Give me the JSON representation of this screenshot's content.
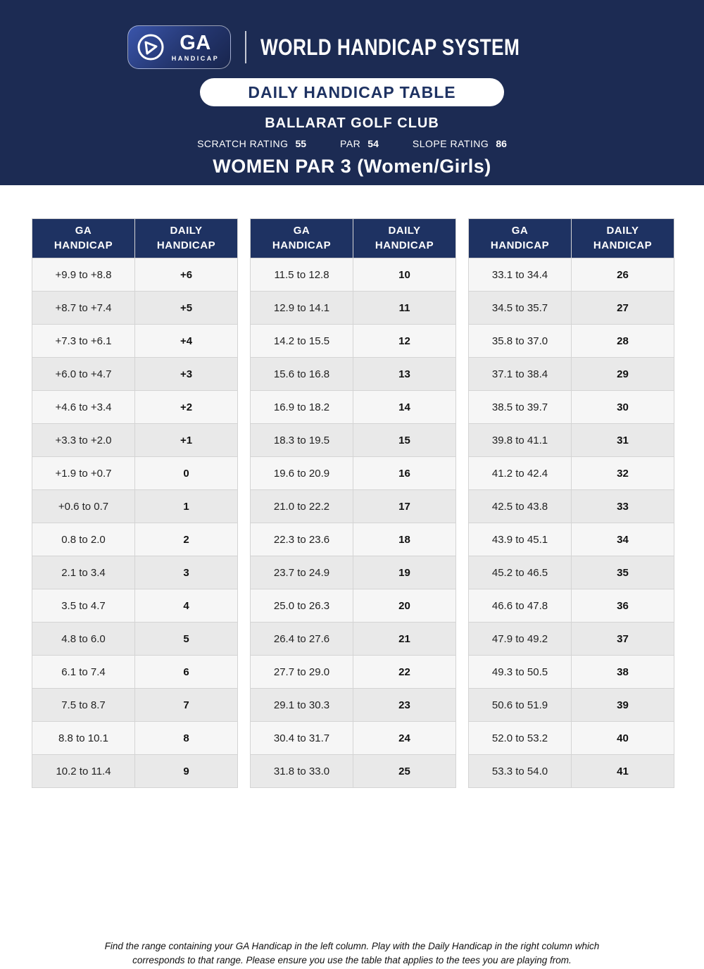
{
  "header": {
    "logo": {
      "ga": "GA",
      "handicap": "HANDICAP"
    },
    "brand": "WORLD HANDICAP SYSTEM",
    "banner_title": "DAILY HANDICAP TABLE",
    "club_name": "BALLARAT GOLF CLUB",
    "ratings": [
      {
        "label": "SCRATCH RATING",
        "value": "55"
      },
      {
        "label": "PAR",
        "value": "54"
      },
      {
        "label": "SLOPE RATING",
        "value": "86"
      }
    ],
    "subtitle": "WOMEN PAR 3 (Women/Girls)"
  },
  "columns": [
    "GA HANDICAP",
    "DAILY HANDICAP"
  ],
  "tables": [
    {
      "rows": [
        [
          "+9.9 to +8.8",
          "+6"
        ],
        [
          "+8.7 to +7.4",
          "+5"
        ],
        [
          "+7.3 to +6.1",
          "+4"
        ],
        [
          "+6.0 to +4.7",
          "+3"
        ],
        [
          "+4.6 to +3.4",
          "+2"
        ],
        [
          "+3.3 to +2.0",
          "+1"
        ],
        [
          "+1.9 to +0.7",
          "0"
        ],
        [
          "+0.6 to 0.7",
          "1"
        ],
        [
          "0.8 to 2.0",
          "2"
        ],
        [
          "2.1 to 3.4",
          "3"
        ],
        [
          "3.5 to 4.7",
          "4"
        ],
        [
          "4.8 to 6.0",
          "5"
        ],
        [
          "6.1 to 7.4",
          "6"
        ],
        [
          "7.5 to 8.7",
          "7"
        ],
        [
          "8.8 to 10.1",
          "8"
        ],
        [
          "10.2 to 11.4",
          "9"
        ]
      ]
    },
    {
      "rows": [
        [
          "11.5 to 12.8",
          "10"
        ],
        [
          "12.9 to 14.1",
          "11"
        ],
        [
          "14.2 to 15.5",
          "12"
        ],
        [
          "15.6 to 16.8",
          "13"
        ],
        [
          "16.9 to 18.2",
          "14"
        ],
        [
          "18.3 to 19.5",
          "15"
        ],
        [
          "19.6 to 20.9",
          "16"
        ],
        [
          "21.0 to 22.2",
          "17"
        ],
        [
          "22.3 to 23.6",
          "18"
        ],
        [
          "23.7 to 24.9",
          "19"
        ],
        [
          "25.0 to 26.3",
          "20"
        ],
        [
          "26.4 to 27.6",
          "21"
        ],
        [
          "27.7 to 29.0",
          "22"
        ],
        [
          "29.1 to 30.3",
          "23"
        ],
        [
          "30.4 to 31.7",
          "24"
        ],
        [
          "31.8 to 33.0",
          "25"
        ]
      ]
    },
    {
      "rows": [
        [
          "33.1 to 34.4",
          "26"
        ],
        [
          "34.5 to 35.7",
          "27"
        ],
        [
          "35.8 to 37.0",
          "28"
        ],
        [
          "37.1 to 38.4",
          "29"
        ],
        [
          "38.5 to 39.7",
          "30"
        ],
        [
          "39.8 to 41.1",
          "31"
        ],
        [
          "41.2 to 42.4",
          "32"
        ],
        [
          "42.5 to 43.8",
          "33"
        ],
        [
          "43.9 to 45.1",
          "34"
        ],
        [
          "45.2 to 46.5",
          "35"
        ],
        [
          "46.6 to 47.8",
          "36"
        ],
        [
          "47.9 to 49.2",
          "37"
        ],
        [
          "49.3 to 50.5",
          "38"
        ],
        [
          "50.6 to 51.9",
          "39"
        ],
        [
          "52.0 to 53.2",
          "40"
        ],
        [
          "53.3 to 54.0",
          "41"
        ]
      ]
    }
  ],
  "footer": {
    "line1": "Find the range containing your GA Handicap in the left column. Play with the Daily Handicap in the right column which",
    "line2": "corresponds to that range. Please ensure you use the table that applies to the tees you are playing from."
  },
  "colors": {
    "navy": "#1c2b53",
    "table-header": "#1e3262",
    "row-light": "#f6f6f6",
    "row-dark": "#e9e9e9",
    "border": "#d4d4d4",
    "text": "#1d1d1d"
  }
}
